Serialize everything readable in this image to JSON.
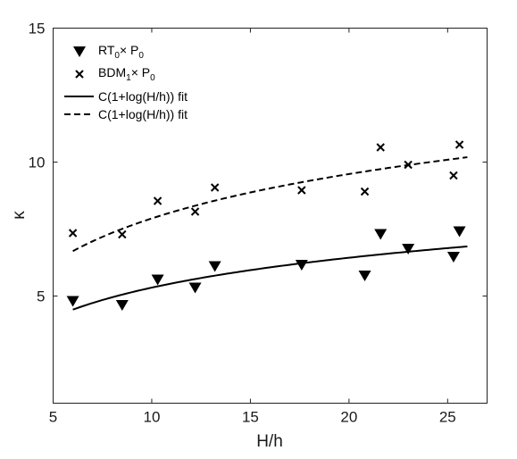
{
  "chart_data": {
    "type": "scatter",
    "xlabel": "H/h",
    "ylabel": "κ",
    "xlim": [
      5,
      27
    ],
    "ylim": [
      1,
      15
    ],
    "xticks": [
      5,
      10,
      15,
      20,
      25
    ],
    "yticks": [
      5,
      10,
      15
    ],
    "grid": false,
    "legend_position": "top-left",
    "series": [
      {
        "name": "RT0×P0",
        "marker": "triangle-down",
        "x": [
          6.0,
          8.5,
          10.3,
          12.2,
          13.2,
          17.6,
          20.8,
          21.6,
          23.0,
          25.3,
          25.6
        ],
        "y": [
          4.8,
          4.65,
          5.6,
          5.3,
          6.1,
          6.15,
          5.75,
          7.3,
          6.75,
          6.45,
          7.4
        ]
      },
      {
        "name": "BDM1×P0",
        "marker": "x",
        "x": [
          6.0,
          8.5,
          10.3,
          12.2,
          13.2,
          17.6,
          20.8,
          21.6,
          23.0,
          25.3,
          25.6
        ],
        "y": [
          7.35,
          7.3,
          8.55,
          8.15,
          9.05,
          8.95,
          8.9,
          10.55,
          9.9,
          9.5,
          10.65
        ]
      },
      {
        "name": "C(1+log(H/h)) fit",
        "line": "solid",
        "C": 1.609,
        "x_range": [
          6,
          26
        ]
      },
      {
        "name": "C(1+log(H/h)) fit",
        "line": "dashed",
        "C": 2.391,
        "x_range": [
          6,
          26
        ]
      }
    ]
  },
  "legend": {
    "entries": [
      {
        "main": "RT",
        "sub": "0",
        "mid": "× P",
        "sub2": "0"
      },
      {
        "main": "BDM",
        "sub": "1",
        "mid": "× P",
        "sub2": "0"
      },
      {
        "main": "C(1+log(H/h)) fit"
      },
      {
        "main": "C(1+log(H/h)) fit"
      }
    ]
  }
}
